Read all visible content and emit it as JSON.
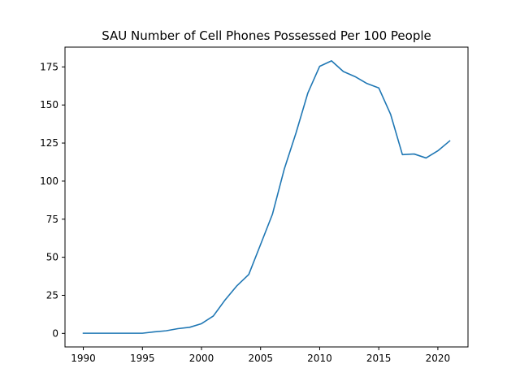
{
  "chart_data": {
    "type": "line",
    "title": "SAU Number of Cell Phones Possessed Per 100 People",
    "xlabel": "",
    "ylabel": "",
    "xlim": [
      1988.45,
      2022.55
    ],
    "ylim": [
      -8.9,
      188.0
    ],
    "grid": false,
    "legend": "none",
    "x_ticks": [
      1990,
      1995,
      2000,
      2005,
      2010,
      2015,
      2020
    ],
    "y_ticks": [
      0,
      25,
      50,
      75,
      100,
      125,
      150,
      175
    ],
    "series": [
      {
        "color": "#1f77b4",
        "x": [
          1990,
          1991,
          1992,
          1993,
          1994,
          1995,
          1996,
          1997,
          1998,
          1999,
          2000,
          2001,
          2002,
          2003,
          2004,
          2005,
          2006,
          2007,
          2008,
          2009,
          2010,
          2011,
          2012,
          2013,
          2014,
          2015,
          2016,
          2017,
          2018,
          2019,
          2020,
          2021
        ],
        "y": [
          0.1,
          0.1,
          0.1,
          0.1,
          0.1,
          0.1,
          1.0,
          1.7,
          3.1,
          4.0,
          6.4,
          11.4,
          22.0,
          31.3,
          38.7,
          58.4,
          78.2,
          107.8,
          131.7,
          157.9,
          175.4,
          179.0,
          172.0,
          168.6,
          164.1,
          161.2,
          143.9,
          117.4,
          117.8,
          115.2,
          119.9,
          126.4
        ]
      }
    ]
  }
}
